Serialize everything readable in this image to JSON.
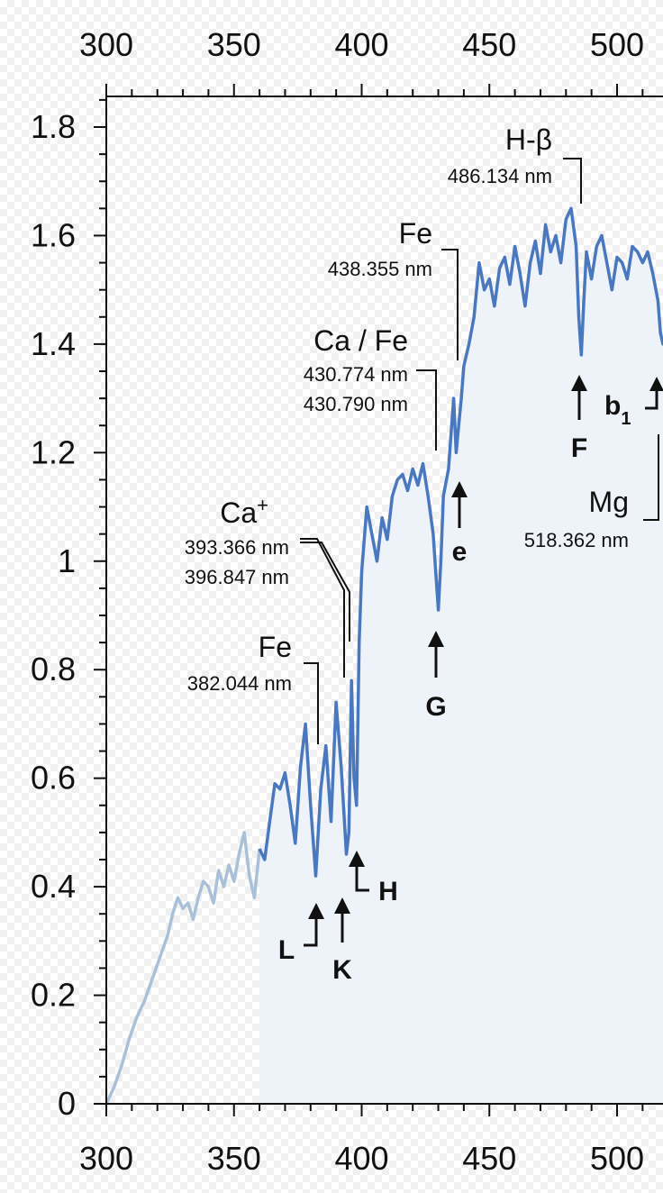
{
  "chart_data": {
    "type": "line",
    "title": "",
    "xlabel": "",
    "ylabel": "",
    "xlim": [
      300,
      520
    ],
    "ylim": [
      0,
      1.85
    ],
    "x_ticks": [
      "300",
      "350",
      "400",
      "450",
      "500"
    ],
    "y_ticks": [
      "0",
      "0.2",
      "0.4",
      "0.6",
      "0.8",
      "1",
      "1.2",
      "1.4",
      "1.6",
      "1.8"
    ],
    "grid": false,
    "colors": {
      "series": "#4a78bf",
      "faded": "#a9c0d9",
      "fill": "#eef3fa"
    },
    "series": [
      {
        "faded_until": 360,
        "x": [
          300,
          303,
          306,
          309,
          312,
          315,
          318,
          321,
          324,
          326,
          328,
          330,
          332,
          334,
          336,
          338,
          340,
          342,
          344,
          346,
          348,
          350,
          352,
          354,
          356,
          358,
          360,
          362,
          364,
          366,
          368,
          370,
          372,
          374,
          376,
          378,
          380,
          382,
          384,
          386,
          388,
          390,
          392,
          394,
          395,
          396,
          397,
          398,
          399,
          400,
          402,
          404,
          406,
          408,
          410,
          412,
          414,
          416,
          418,
          420,
          422,
          424,
          426,
          428,
          429,
          430,
          431,
          432,
          434,
          436,
          437,
          438,
          439,
          440,
          442,
          444,
          446,
          448,
          450,
          452,
          454,
          456,
          458,
          460,
          462,
          464,
          466,
          468,
          470,
          472,
          474,
          476,
          478,
          480,
          482,
          484,
          485,
          486,
          487,
          488,
          490,
          492,
          494,
          496,
          498,
          500,
          502,
          504,
          506,
          508,
          510,
          512,
          514,
          516,
          517,
          518,
          519,
          520
        ],
        "y": [
          0.0,
          0.03,
          0.07,
          0.12,
          0.16,
          0.19,
          0.23,
          0.27,
          0.31,
          0.35,
          0.38,
          0.36,
          0.37,
          0.34,
          0.38,
          0.41,
          0.4,
          0.37,
          0.43,
          0.4,
          0.44,
          0.41,
          0.46,
          0.5,
          0.42,
          0.38,
          0.47,
          0.45,
          0.52,
          0.59,
          0.58,
          0.61,
          0.55,
          0.48,
          0.62,
          0.7,
          0.55,
          0.42,
          0.58,
          0.66,
          0.52,
          0.74,
          0.62,
          0.46,
          0.5,
          0.78,
          0.6,
          0.55,
          0.85,
          0.98,
          1.1,
          1.05,
          1.0,
          1.08,
          1.04,
          1.12,
          1.15,
          1.16,
          1.13,
          1.17,
          1.14,
          1.18,
          1.12,
          1.05,
          0.98,
          0.91,
          1.0,
          1.12,
          1.17,
          1.3,
          1.2,
          1.25,
          1.3,
          1.36,
          1.4,
          1.45,
          1.55,
          1.5,
          1.52,
          1.47,
          1.54,
          1.56,
          1.51,
          1.58,
          1.53,
          1.47,
          1.55,
          1.59,
          1.53,
          1.62,
          1.57,
          1.6,
          1.55,
          1.63,
          1.65,
          1.58,
          1.45,
          1.38,
          1.48,
          1.57,
          1.52,
          1.58,
          1.6,
          1.55,
          1.5,
          1.56,
          1.55,
          1.52,
          1.58,
          1.57,
          1.55,
          1.57,
          1.53,
          1.48,
          1.42,
          1.4,
          1.42,
          1.5
        ]
      }
    ],
    "annotations": [
      {
        "id": "fe382",
        "title": "Fe",
        "waves": [
          "382.044 nm"
        ],
        "letter": ""
      },
      {
        "id": "ca",
        "title": "Ca",
        "sup": "+",
        "waves": [
          "393.366 nm",
          "396.847 nm"
        ],
        "letter": ""
      },
      {
        "id": "cafe",
        "title": "Ca / Fe",
        "waves": [
          "430.774 nm",
          "430.790 nm"
        ],
        "letter": "G"
      },
      {
        "id": "fe438",
        "title": "Fe",
        "waves": [
          "438.355 nm"
        ],
        "letter": "e"
      },
      {
        "id": "hb",
        "title": "H-β",
        "waves": [
          "486.134 nm"
        ],
        "letter": "F"
      },
      {
        "id": "mg",
        "title": "Mg",
        "waves": [
          "518.362 nm"
        ],
        "letter": ""
      },
      {
        "id": "L",
        "letter": "L"
      },
      {
        "id": "K",
        "letter": "K"
      },
      {
        "id": "H",
        "letter": "H"
      },
      {
        "id": "b1",
        "letter": "b",
        "sub": "1"
      }
    ]
  }
}
